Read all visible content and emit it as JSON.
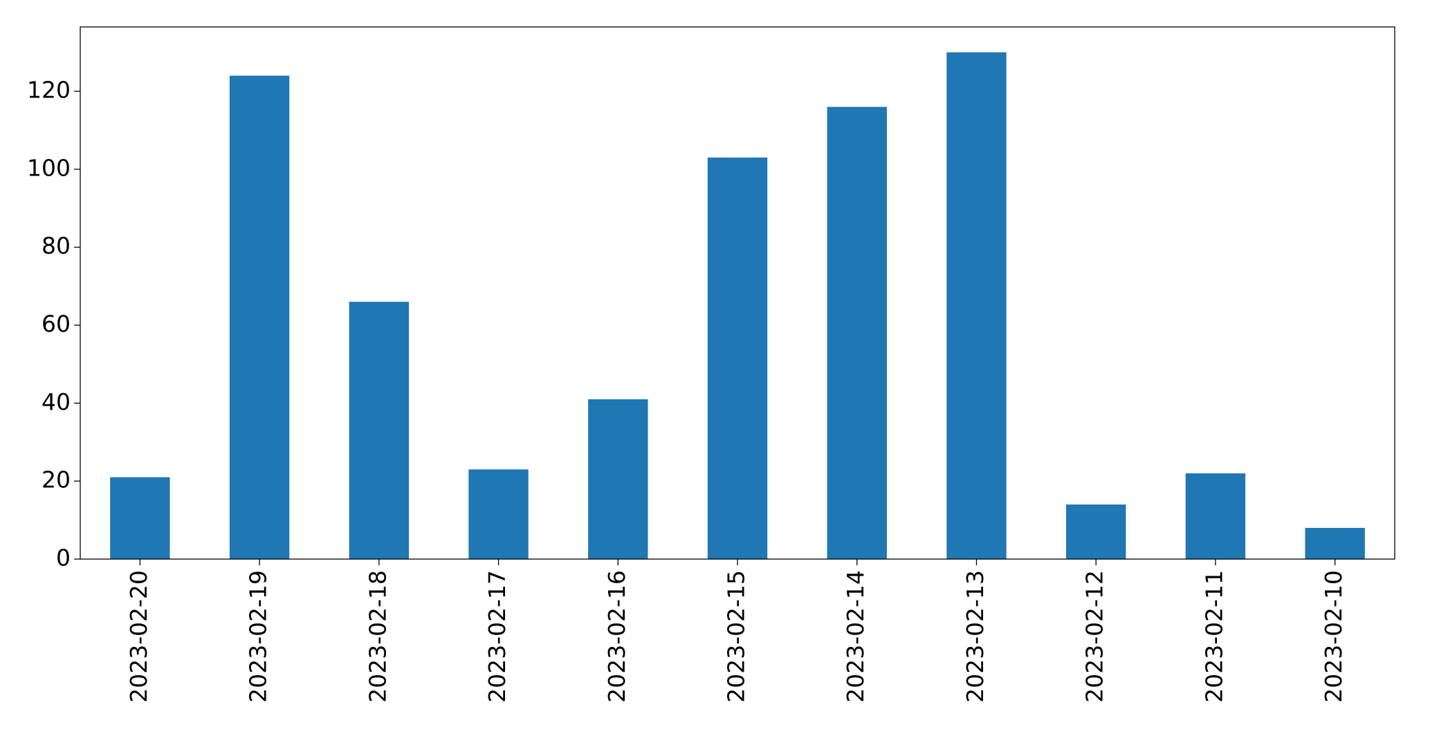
{
  "chart_data": {
    "type": "bar",
    "categories": [
      "2023-02-20",
      "2023-02-19",
      "2023-02-18",
      "2023-02-17",
      "2023-02-16",
      "2023-02-15",
      "2023-02-14",
      "2023-02-13",
      "2023-02-12",
      "2023-02-11",
      "2023-02-10"
    ],
    "values": [
      21,
      124,
      66,
      23,
      41,
      103,
      116,
      130,
      14,
      22,
      8
    ],
    "color": "#1f77b4",
    "ylim": [
      0,
      136.5
    ],
    "yticks": [
      0,
      20,
      40,
      60,
      80,
      100,
      120
    ],
    "grid": false
  }
}
